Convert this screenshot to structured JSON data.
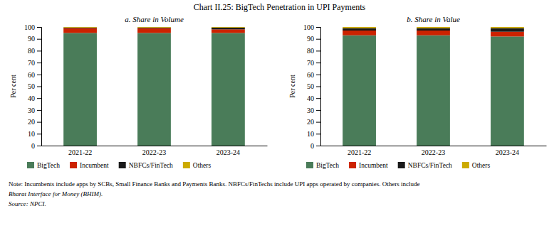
{
  "title": "Chart II.25: BigTech Penetration in UPI Payments",
  "chart_data": [
    {
      "type": "bar",
      "stacked": true,
      "subtitle": "a. Share in Volume",
      "categories": [
        "2021-22",
        "2022-23",
        "2023-24"
      ],
      "series": [
        {
          "name": "BigTech",
          "color": "#4a7c59",
          "values": [
            95.0,
            95.0,
            95.0
          ]
        },
        {
          "name": "Incumbent",
          "color": "#cc2200",
          "values": [
            4.0,
            4.0,
            3.0
          ]
        },
        {
          "name": "NBFCs/FinTech",
          "color": "#1a1a1a",
          "values": [
            0.5,
            0.5,
            1.5
          ]
        },
        {
          "name": "Others",
          "color": "#ccaa00",
          "values": [
            0.5,
            0.5,
            0.5
          ]
        }
      ],
      "ylabel": "Per cent",
      "ylim": [
        0,
        100
      ],
      "yticks": [
        0,
        10,
        20,
        30,
        40,
        50,
        60,
        70,
        80,
        90,
        100
      ],
      "grid": false,
      "legend": "bottom"
    },
    {
      "type": "bar",
      "stacked": true,
      "subtitle": "b. Share in Value",
      "categories": [
        "2021-22",
        "2022-23",
        "2023-24"
      ],
      "series": [
        {
          "name": "BigTech",
          "color": "#4a7c59",
          "values": [
            93.0,
            93.0,
            92.0
          ]
        },
        {
          "name": "Incumbent",
          "color": "#cc2200",
          "values": [
            4.0,
            4.0,
            4.0
          ]
        },
        {
          "name": "NBFCs/FinTech",
          "color": "#1a1a1a",
          "values": [
            2.0,
            2.0,
            3.0
          ]
        },
        {
          "name": "Others",
          "color": "#ccaa00",
          "values": [
            1.0,
            1.0,
            1.0
          ]
        }
      ],
      "ylabel": "Per cent",
      "ylim": [
        0,
        100
      ],
      "yticks": [
        0,
        10,
        20,
        30,
        40,
        50,
        60,
        70,
        80,
        90,
        100
      ],
      "grid": false,
      "legend": "bottom"
    }
  ],
  "annotations": [
    "Note: Incumbents include apps by SCBs, Small Finance Banks and Payments Banks. NBFCs/FinTechs include UPI apps operated by companies. Others include",
    "Bharat Interface for Money (BHIM).",
    "Source: NPCI."
  ]
}
